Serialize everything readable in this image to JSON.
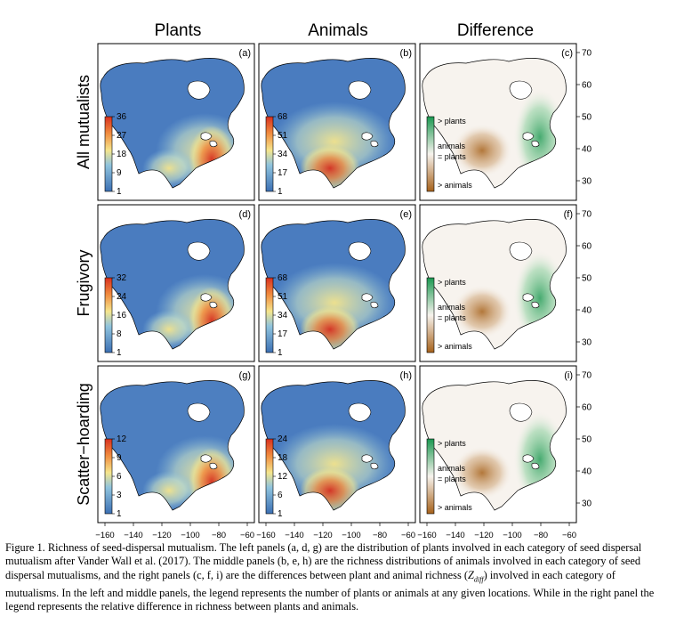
{
  "figure": {
    "col_titles": [
      "Plants",
      "Animals",
      "Difference"
    ],
    "row_titles": [
      "All mutualists",
      "Frugivory",
      "Scatter−hoarding"
    ],
    "panels": [
      {
        "letter": "(a)",
        "kind": "plants",
        "legend_ticks": [
          "36",
          "27",
          "18",
          "9",
          "1"
        ]
      },
      {
        "letter": "(b)",
        "kind": "animals",
        "legend_ticks": [
          "68",
          "51",
          "34",
          "17",
          "1"
        ]
      },
      {
        "letter": "(c)",
        "kind": "diff",
        "legend_labels": [
          "> plants",
          "animals",
          "= plants",
          "> animals"
        ]
      },
      {
        "letter": "(d)",
        "kind": "plants",
        "legend_ticks": [
          "32",
          "24",
          "16",
          "8",
          "1"
        ]
      },
      {
        "letter": "(e)",
        "kind": "animals",
        "legend_ticks": [
          "68",
          "51",
          "34",
          "17",
          "1"
        ]
      },
      {
        "letter": "(f)",
        "kind": "diff",
        "legend_labels": [
          "> plants",
          "animals",
          "= plants",
          "> animals"
        ]
      },
      {
        "letter": "(g)",
        "kind": "plants",
        "legend_ticks": [
          "12",
          "9",
          "6",
          "3",
          "1"
        ]
      },
      {
        "letter": "(h)",
        "kind": "animals",
        "legend_ticks": [
          "24",
          "18",
          "12",
          "6",
          "1"
        ]
      },
      {
        "letter": "(i)",
        "kind": "diff",
        "legend_labels": [
          "> plants",
          "animals",
          "= plants",
          "> animals"
        ]
      }
    ],
    "lon_ticks": [
      "−160",
      "−140",
      "−120",
      "−100",
      "−80",
      "−60"
    ],
    "lat_ticks": [
      "70",
      "60",
      "50",
      "40",
      "30"
    ],
    "colors": {
      "low": "#3b6fb3",
      "mid": "#f5e58c",
      "high": "#d7301f",
      "diff_plants": "#1a9850",
      "diff_neutral": "#f7f3ee",
      "diff_animals": "#a6611a"
    }
  },
  "caption": {
    "p1": "Figure 1. Richness of seed-dispersal mutualism. The left panels (a, d, g) are the distribution of plants involved in each category of seed dispersal mutualism after Vander Wall et al. (2017). The middle panels (b, e, h) are the richness distributions of animals involved in each category of seed dispersal mutualisms, and the right panels (c, f, i) are the differences between plant and animal richness (",
    "zdiff": "Z",
    "zdiff_sub": "diff",
    "p2": ") involved in each category of mutualisms. In the left and middle panels, the legend represents the number of plants or animals at any given locations. While in the right panel the legend represents the relative difference in richness between plants and animals."
  }
}
